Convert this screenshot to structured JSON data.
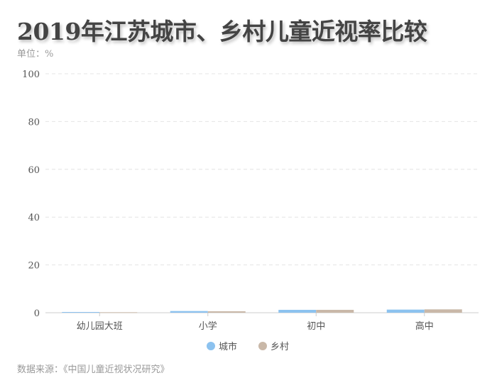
{
  "title": "2019年江苏城市、乡村儿童近视率比较",
  "unit": "单位：%",
  "source": "数据来源：《中国儿童近视状况研究》",
  "chart_data": {
    "type": "bar",
    "categories": [
      "幼儿园大班",
      "小学",
      "初中",
      "高中"
    ],
    "series": [
      {
        "name": "城市",
        "color": "#8cc2ef",
        "values": [
          0.3,
          0.7,
          1.2,
          1.3
        ]
      },
      {
        "name": "乡村",
        "color": "#c9b8a8",
        "values": [
          0.2,
          0.6,
          1.2,
          1.4
        ]
      }
    ],
    "yticks": [
      0,
      20,
      40,
      60,
      80,
      100
    ],
    "ylim": [
      0,
      100
    ],
    "grid": true,
    "legend": "bottom"
  }
}
